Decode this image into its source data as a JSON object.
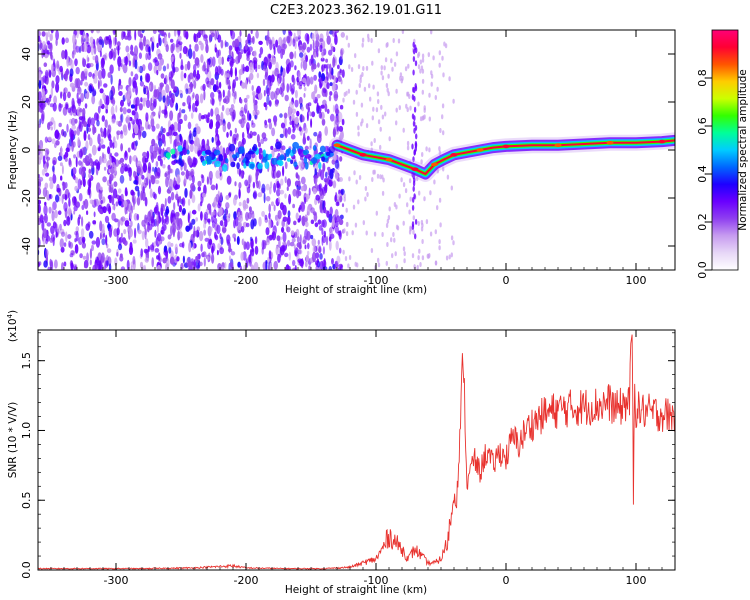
{
  "title": "C2E3.2023.362.19.01.G11",
  "colors": {
    "snr_line": "#e8322e",
    "colormap": [
      "#ffffff",
      "#e7d7f7",
      "#c79cf0",
      "#8f3ff0",
      "#6a00ff",
      "#1e00ff",
      "#0066ff",
      "#00ccff",
      "#00ff99",
      "#33ff00",
      "#ccff00",
      "#ffcc00",
      "#ff5500",
      "#ff0033",
      "#ff0077"
    ]
  },
  "chart_data": [
    {
      "type": "heatmap",
      "xlabel": "Height of straight line (km)",
      "ylabel": "Frequency (Hz)",
      "xlim": [
        -360,
        130
      ],
      "ylim": [
        -50,
        50
      ],
      "xticks": [
        -300,
        -200,
        -100,
        0,
        100
      ],
      "yticks": [
        -40,
        -20,
        0,
        20,
        40
      ],
      "colorbar": {
        "label": "Normalized spectral amplitude",
        "range": [
          0,
          1
        ],
        "ticks": [
          "0.0",
          "0.2",
          "0.4",
          "0.6",
          "0.8"
        ]
      },
      "ridge": [
        {
          "x": -130,
          "y": 2
        },
        {
          "x": -120,
          "y": 0
        },
        {
          "x": -110,
          "y": -2
        },
        {
          "x": -100,
          "y": -3
        },
        {
          "x": -90,
          "y": -4
        },
        {
          "x": -80,
          "y": -6
        },
        {
          "x": -70,
          "y": -8
        },
        {
          "x": -62,
          "y": -10
        },
        {
          "x": -55,
          "y": -6
        },
        {
          "x": -48,
          "y": -4
        },
        {
          "x": -40,
          "y": -2
        },
        {
          "x": -30,
          "y": -1
        },
        {
          "x": -20,
          "y": 0
        },
        {
          "x": -10,
          "y": 1
        },
        {
          "x": 0,
          "y": 1.5
        },
        {
          "x": 20,
          "y": 2
        },
        {
          "x": 40,
          "y": 2
        },
        {
          "x": 60,
          "y": 2.5
        },
        {
          "x": 80,
          "y": 3
        },
        {
          "x": 100,
          "y": 3
        },
        {
          "x": 120,
          "y": 3.5
        },
        {
          "x": 130,
          "y": 4
        }
      ],
      "noise_band": [
        {
          "x": -250,
          "y": -3
        },
        {
          "x": -225,
          "y": -4
        },
        {
          "x": -200,
          "y": -3
        },
        {
          "x": -185,
          "y": -3
        },
        {
          "x": -165,
          "y": -2
        },
        {
          "x": -145,
          "y": -3
        }
      ]
    },
    {
      "type": "line",
      "xlabel": "Height of straight line (km)",
      "ylabel": "SNR (10 * V/V)",
      "scale_label": "(x10",
      "scale_exp": "4",
      "scale_close": ")",
      "xlim": [
        -360,
        130
      ],
      "ylim": [
        0,
        1.72
      ],
      "xticks": [
        -300,
        -200,
        -100,
        0,
        100
      ],
      "yticks": [
        "0.0",
        "0.5",
        "1.0",
        "1.5"
      ],
      "series": [
        {
          "points": [
            [
              -360,
              0.01
            ],
            [
              -320,
              0.01
            ],
            [
              -280,
              0.01
            ],
            [
              -240,
              0.015
            ],
            [
              -210,
              0.03
            ],
            [
              -200,
              0.015
            ],
            [
              -170,
              0.01
            ],
            [
              -140,
              0.01
            ],
            [
              -120,
              0.02
            ],
            [
              -110,
              0.05
            ],
            [
              -100,
              0.08
            ],
            [
              -95,
              0.15
            ],
            [
              -90,
              0.25
            ],
            [
              -85,
              0.2
            ],
            [
              -80,
              0.15
            ],
            [
              -75,
              0.08
            ],
            [
              -70,
              0.15
            ],
            [
              -65,
              0.1
            ],
            [
              -60,
              0.05
            ],
            [
              -55,
              0.05
            ],
            [
              -50,
              0.08
            ],
            [
              -45,
              0.2
            ],
            [
              -42,
              0.4
            ],
            [
              -40,
              0.55
            ],
            [
              -38,
              0.5
            ],
            [
              -35,
              1.0
            ],
            [
              -33,
              1.6
            ],
            [
              -30,
              0.6
            ],
            [
              -25,
              0.8
            ],
            [
              -20,
              0.7
            ],
            [
              -15,
              0.85
            ],
            [
              -10,
              0.75
            ],
            [
              -5,
              0.85
            ],
            [
              0,
              0.8
            ],
            [
              5,
              0.95
            ],
            [
              10,
              0.9
            ],
            [
              15,
              1.0
            ],
            [
              20,
              1.05
            ],
            [
              30,
              1.12
            ],
            [
              40,
              1.15
            ],
            [
              50,
              1.16
            ],
            [
              60,
              1.17
            ],
            [
              70,
              1.18
            ],
            [
              80,
              1.2
            ],
            [
              85,
              1.15
            ],
            [
              90,
              1.18
            ],
            [
              95,
              1.22
            ],
            [
              97,
              1.7
            ],
            [
              98,
              0.5
            ],
            [
              99,
              1.35
            ],
            [
              100,
              1.15
            ],
            [
              110,
              1.13
            ],
            [
              120,
              1.12
            ],
            [
              130,
              1.1
            ]
          ]
        }
      ]
    }
  ]
}
